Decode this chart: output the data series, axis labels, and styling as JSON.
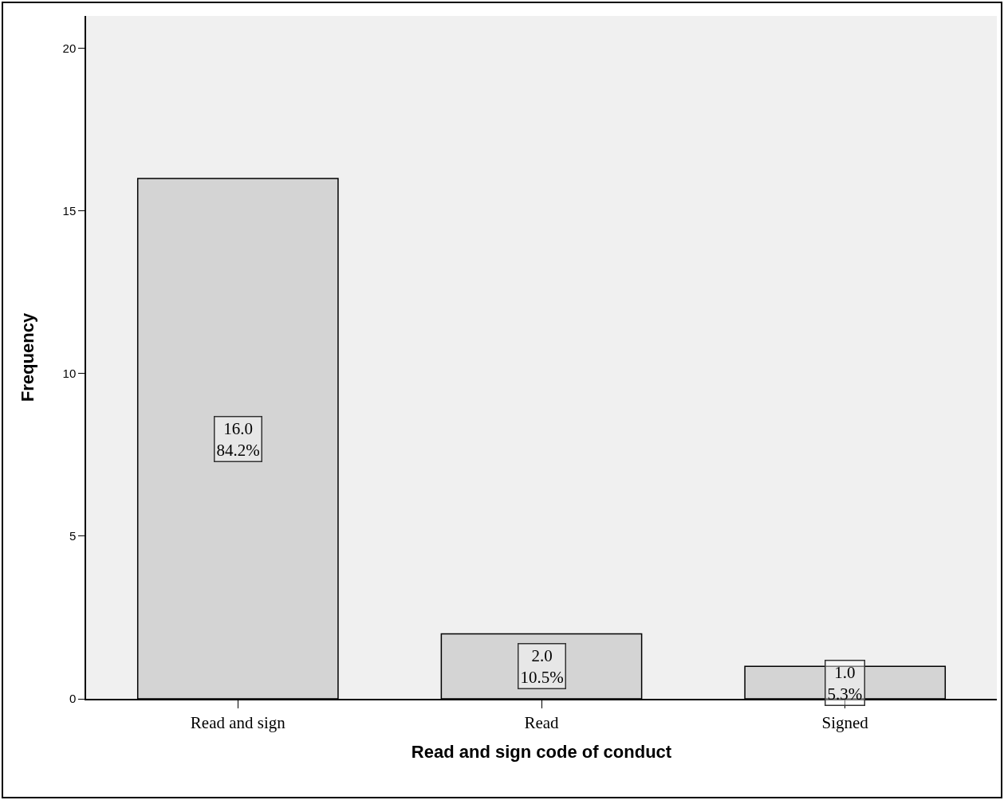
{
  "chart_data": {
    "type": "bar",
    "xlabel": "Read and sign code of conduct",
    "ylabel": "Frequency",
    "categories": [
      "Read and sign",
      "Read",
      "Signed"
    ],
    "values": [
      16,
      2,
      1
    ],
    "value_labels": [
      "16.0\n84.2%",
      "2.0\n10.5%",
      "1.0\n5.3%"
    ],
    "color": "#d4d4d4",
    "ylim": [
      0,
      21
    ],
    "yticks": [
      0,
      5,
      10,
      15,
      20
    ],
    "grid": false,
    "legend": false
  }
}
